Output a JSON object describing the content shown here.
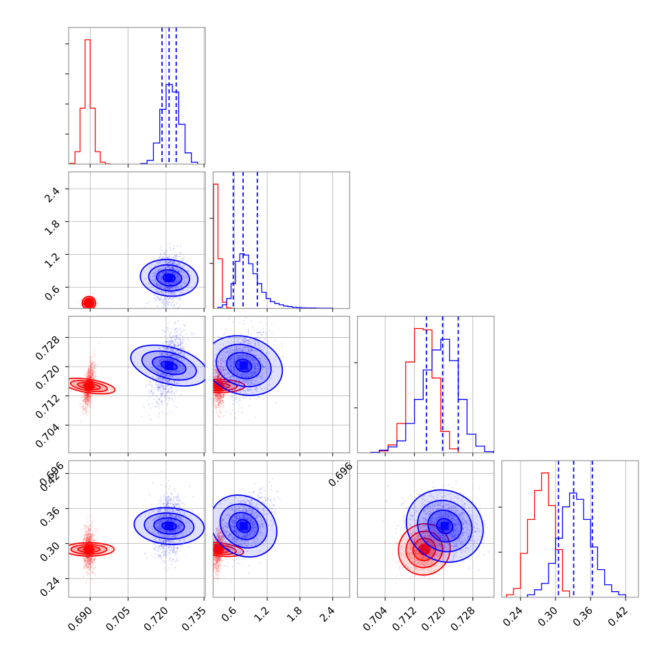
{
  "chart_data": {
    "type": "corner",
    "colors": {
      "red": "#ff0000",
      "blue": "#0000ff"
    },
    "grid": true,
    "parameters": [
      {
        "ticks": [
          0.69,
          0.705,
          0.72,
          0.735
        ],
        "tick_labels": [
          "0.690",
          "0.705",
          "0.720",
          "0.735"
        ],
        "range": [
          0.6815,
          0.7355
        ]
      },
      {
        "ticks": [
          0.6,
          1.2,
          1.8,
          2.4
        ],
        "tick_labels": [
          "0.6",
          "1.2",
          "1.8",
          "2.4"
        ],
        "range": [
          0.21,
          2.71
        ]
      },
      {
        "ticks": [
          0.696,
          0.704,
          0.712,
          0.72,
          0.728
        ],
        "tick_labels": [
          "0.696",
          "0.704",
          "0.712",
          "0.720",
          "0.728"
        ],
        "range": [
          0.6964,
          0.7338
        ]
      },
      {
        "ticks": [
          0.24,
          0.3,
          0.36,
          0.42
        ],
        "tick_labels": [
          "0.24",
          "0.30",
          "0.36",
          "0.42"
        ],
        "range": [
          0.208,
          0.442
        ]
      }
    ],
    "series": [
      {
        "color": "red",
        "mean": [
          0.6895,
          0.31,
          0.7147,
          0.29
        ],
        "std": [
          0.0011,
          0.05,
          0.003,
          0.018
        ],
        "corr": [
          [
            0,
            1,
            0.0
          ],
          [
            0,
            2,
            0.6
          ],
          [
            0,
            3,
            0.0
          ],
          [
            1,
            2,
            0.0
          ],
          [
            1,
            3,
            0.4
          ],
          [
            2,
            3,
            0.2
          ]
        ]
      },
      {
        "color": "blue",
        "mean": [
          0.7212,
          0.77,
          0.7203,
          0.33
        ],
        "std": [
          0.003,
          0.22,
          0.0045,
          0.025
        ],
        "corr": [
          [
            0,
            1,
            0.1
          ],
          [
            0,
            2,
            0.5
          ],
          [
            0,
            3,
            0.1
          ],
          [
            1,
            2,
            0.2
          ],
          [
            1,
            3,
            0.5
          ],
          [
            2,
            3,
            -0.2
          ]
        ]
      }
    ],
    "quantile_lines": [
      [
        0.7184,
        0.7212,
        0.724
      ],
      [
        0.58,
        0.76,
        1.02
      ],
      [
        0.7153,
        0.7197,
        0.724
      ],
      [
        0.305,
        0.331,
        0.363
      ]
    ],
    "histograms": [
      {
        "red": {
          "edges": [
            0.682,
            0.684,
            0.686,
            0.688,
            0.69,
            0.692,
            0.694,
            0.696,
            0.698
          ],
          "counts": [
            0.005,
            0.1,
            0.45,
            1.0,
            0.45,
            0.1,
            0.015,
            0.002
          ]
        },
        "blue": {
          "edges": [
            0.71,
            0.7125,
            0.715,
            0.7175,
            0.72,
            0.7225,
            0.725,
            0.7275,
            0.73,
            0.7325
          ],
          "counts": [
            0.005,
            0.03,
            0.17,
            0.44,
            0.64,
            0.58,
            0.32,
            0.09,
            0.015
          ]
        }
      },
      {
        "red": {
          "edges": [
            0.22,
            0.3,
            0.38,
            0.46,
            0.54,
            0.62
          ],
          "counts": [
            1.0,
            0.4,
            0.05,
            0.005,
            0.0
          ]
        },
        "blue": {
          "edges": [
            0.3,
            0.38,
            0.46,
            0.54,
            0.62,
            0.7,
            0.78,
            0.86,
            0.94,
            1.02,
            1.1,
            1.18,
            1.26,
            1.34,
            1.42,
            1.5,
            1.58,
            1.66,
            1.74,
            1.82,
            1.9,
            2.1,
            2.4
          ],
          "counts": [
            0.01,
            0.03,
            0.08,
            0.2,
            0.38,
            0.44,
            0.43,
            0.36,
            0.28,
            0.2,
            0.13,
            0.08,
            0.055,
            0.04,
            0.03,
            0.02,
            0.015,
            0.01,
            0.008,
            0.005,
            0.004,
            0.002
          ]
        }
      },
      {
        "red": {
          "edges": [
            0.7,
            0.7024,
            0.7048,
            0.7072,
            0.7096,
            0.712,
            0.7144,
            0.7168,
            0.7192,
            0.7216,
            0.724
          ],
          "counts": [
            0.003,
            0.015,
            0.06,
            0.22,
            0.68,
            0.93,
            0.92,
            0.56,
            0.16,
            0.03
          ]
        },
        "blue": {
          "edges": [
            0.7,
            0.7024,
            0.7048,
            0.7072,
            0.7096,
            0.712,
            0.7144,
            0.7168,
            0.7192,
            0.7216,
            0.724,
            0.7264,
            0.7288,
            0.7312,
            0.7336
          ],
          "counts": [
            0.003,
            0.02,
            0.045,
            0.09,
            0.22,
            0.4,
            0.62,
            0.77,
            0.85,
            0.69,
            0.4,
            0.14,
            0.05,
            0.01
          ]
        }
      },
      {
        "red": {
          "edges": [
            0.216,
            0.228,
            0.24,
            0.252,
            0.264,
            0.276,
            0.288,
            0.3,
            0.312,
            0.324
          ],
          "counts": [
            0.02,
            0.07,
            0.35,
            0.62,
            0.85,
            0.99,
            0.73,
            0.38,
            0.05
          ]
        },
        "blue": {
          "edges": [
            0.252,
            0.264,
            0.276,
            0.288,
            0.3,
            0.312,
            0.324,
            0.336,
            0.348,
            0.36,
            0.372,
            0.384,
            0.396,
            0.408,
            0.42
          ],
          "counts": [
            0.02,
            0.06,
            0.11,
            0.27,
            0.47,
            0.72,
            0.83,
            0.78,
            0.62,
            0.4,
            0.22,
            0.1,
            0.045,
            0.02
          ]
        }
      }
    ]
  }
}
